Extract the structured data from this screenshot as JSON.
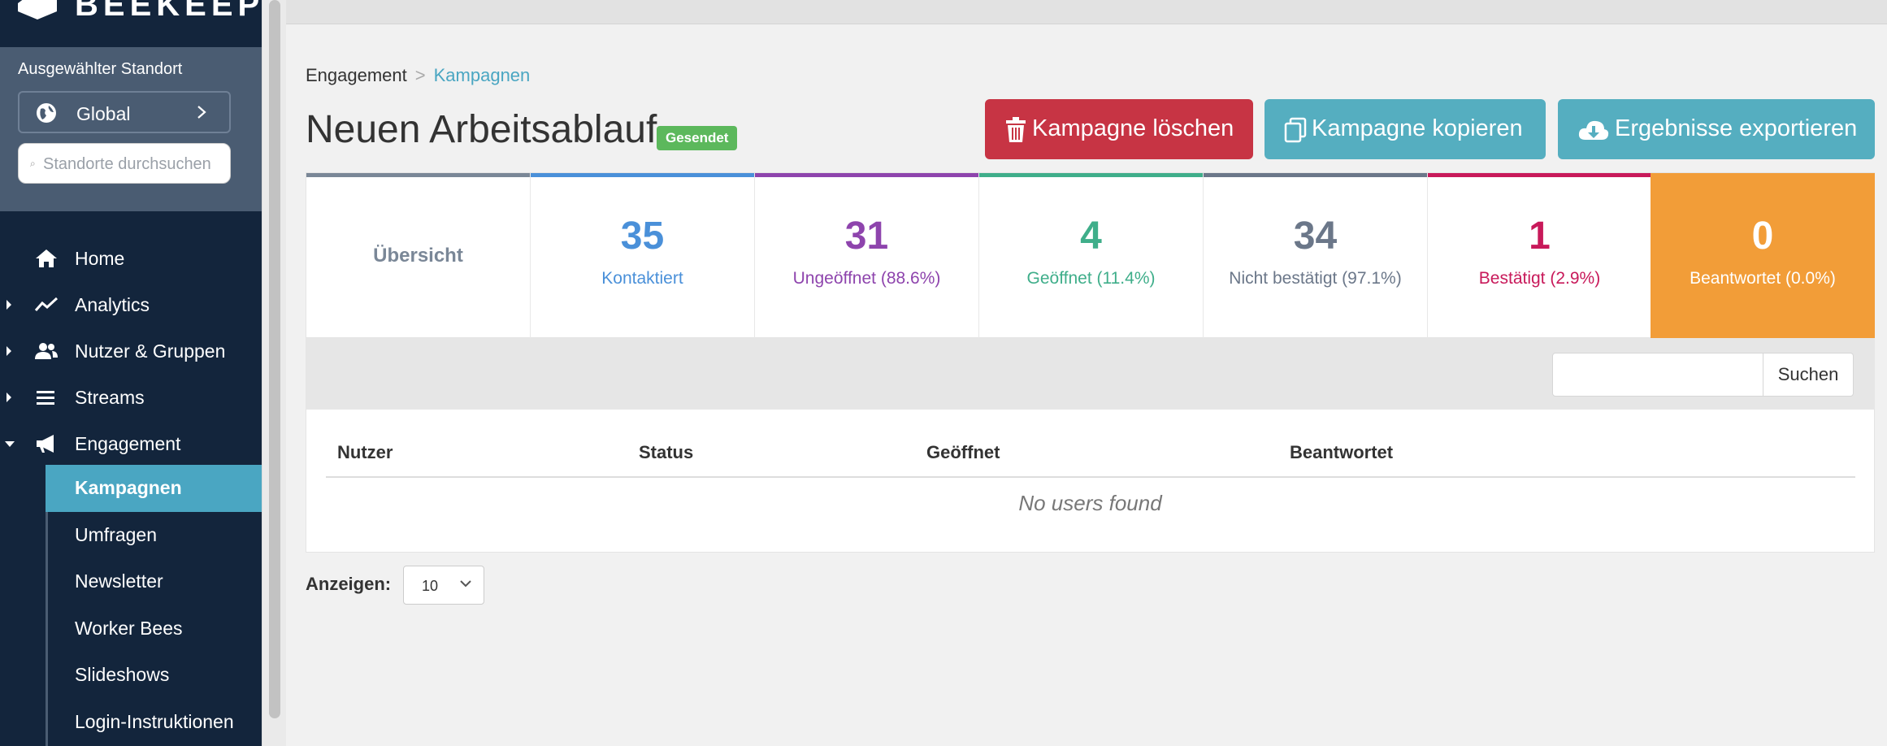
{
  "brand": {
    "name": "BEEKEEPER"
  },
  "location": {
    "label": "Ausgewählter Standort",
    "selected": "Global",
    "search_placeholder": "Standorte durchsuchen"
  },
  "nav": {
    "home": "Home",
    "analytics": "Analytics",
    "users_groups": "Nutzer & Gruppen",
    "streams": "Streams",
    "engagement": "Engagement",
    "sub": {
      "campaigns": "Kampagnen",
      "surveys": "Umfragen",
      "newsletter": "Newsletter",
      "worker_bees": "Worker Bees",
      "slideshows": "Slideshows",
      "login": "Login-Instruktionen"
    }
  },
  "breadcrumb": {
    "parent": "Engagement",
    "separator": ">",
    "current": "Kampagnen"
  },
  "page": {
    "title": "Neuen Arbeitsablauf",
    "status_badge": "Gesendet"
  },
  "actions": {
    "delete": "Kampagne löschen",
    "copy": "Kampagne kopieren",
    "export": "Ergebnisse exportieren"
  },
  "stats": {
    "overview": "Übersicht",
    "contacted": {
      "value": "35",
      "label": "Kontaktiert",
      "color": "#4a90d9"
    },
    "unopened": {
      "value": "31",
      "label": "Ungeöffnet (88.6%)",
      "color": "#8e44ad"
    },
    "opened": {
      "value": "4",
      "label": "Geöffnet (11.4%)",
      "color": "#3fae8a"
    },
    "unconfirmed": {
      "value": "34",
      "label": "Nicht bestätigt (97.1%)",
      "color": "#6b7789"
    },
    "confirmed": {
      "value": "1",
      "label": "Bestätigt (2.9%)",
      "color": "#c8195a"
    },
    "answered": {
      "value": "0",
      "label": "Beantwortet (0.0%)",
      "color": "#f29d38"
    }
  },
  "search": {
    "value": "",
    "button": "Suchen"
  },
  "table": {
    "columns": [
      "Nutzer",
      "Status",
      "Geöffnet",
      "Beantwortet"
    ],
    "empty": "No users found"
  },
  "pagination": {
    "label": "Anzeigen:",
    "page_size": "10"
  }
}
